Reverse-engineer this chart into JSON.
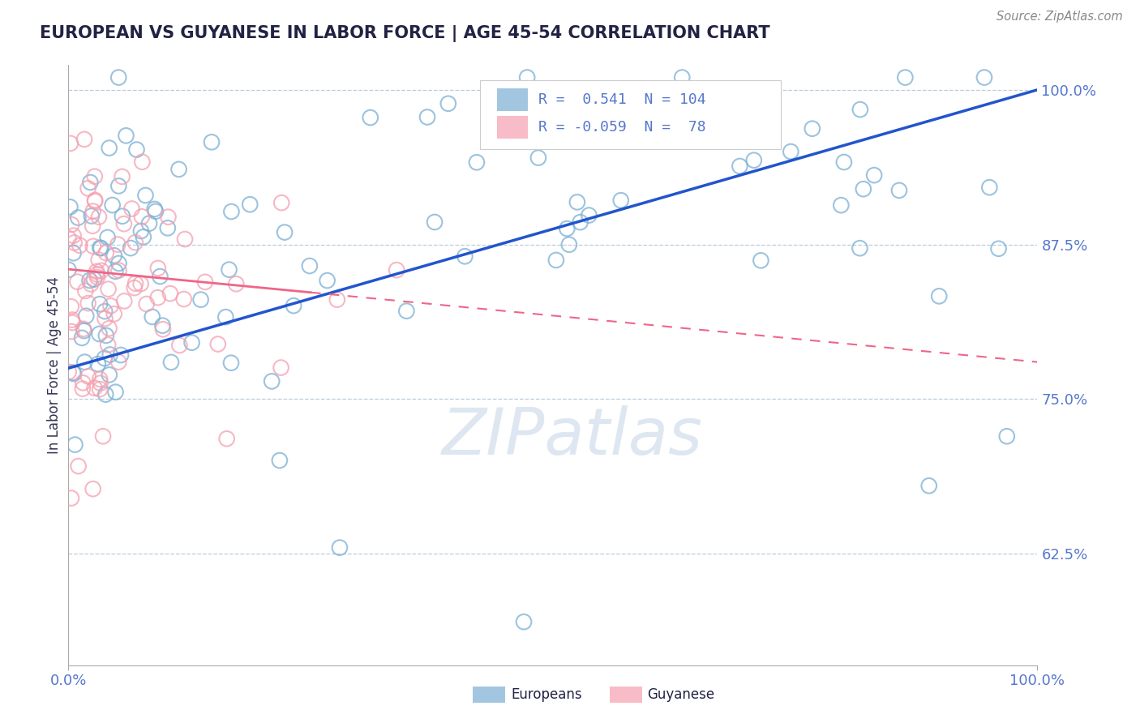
{
  "title": "EUROPEAN VS GUYANESE IN LABOR FORCE | AGE 45-54 CORRELATION CHART",
  "source": "Source: ZipAtlas.com",
  "ylabel": "In Labor Force | Age 45-54",
  "ytick_labels": [
    "62.5%",
    "75.0%",
    "87.5%",
    "100.0%"
  ],
  "ytick_values": [
    0.625,
    0.75,
    0.875,
    1.0
  ],
  "xlim": [
    0.0,
    1.0
  ],
  "ylim": [
    0.535,
    1.02
  ],
  "blue_color": "#7BAFD4",
  "pink_color": "#F4A0B0",
  "blue_line_color": "#2255CC",
  "pink_line_color": "#EE6688",
  "blue_R": 0.541,
  "blue_N": 104,
  "pink_R": -0.059,
  "pink_N": 78,
  "legend_label_blue": "Europeans",
  "legend_label_pink": "Guyanese",
  "watermark": "ZIPatlas",
  "tick_color": "#5577CC",
  "grid_color": "#BBCCDD",
  "title_color": "#222244",
  "source_color": "#888888"
}
